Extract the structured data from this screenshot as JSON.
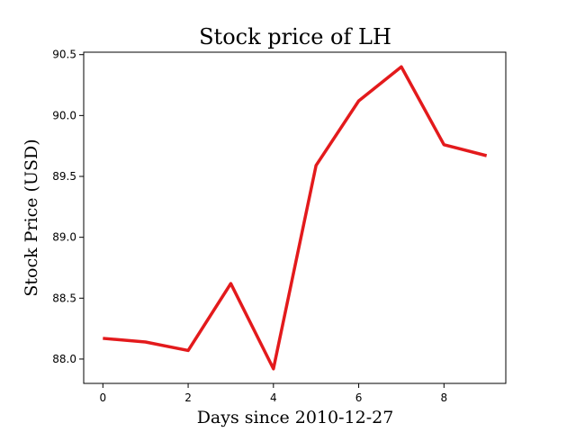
{
  "chart_data": {
    "type": "line",
    "title": "Stock price of LH",
    "xlabel": "Days since 2010-12-27",
    "ylabel": "Stock Price (USD)",
    "x": [
      0,
      1,
      2,
      3,
      4,
      5,
      6,
      7,
      8,
      9
    ],
    "series": [
      {
        "values": [
          88.17,
          88.14,
          88.07,
          88.62,
          87.92,
          89.59,
          90.12,
          90.4,
          89.76,
          89.67
        ],
        "color": "#e31a1c"
      }
    ],
    "xlim": [
      -0.45,
      9.45
    ],
    "ylim": [
      87.8,
      90.52
    ],
    "xticks": [
      0,
      2,
      4,
      6,
      8
    ],
    "xtick_labels": [
      "0",
      "2",
      "4",
      "6",
      "8"
    ],
    "yticks": [
      88.0,
      88.5,
      89.0,
      89.5,
      90.0,
      90.5
    ],
    "ytick_labels": [
      "88.0",
      "88.5",
      "89.0",
      "89.5",
      "90.0",
      "90.5"
    ],
    "grid": false
  }
}
